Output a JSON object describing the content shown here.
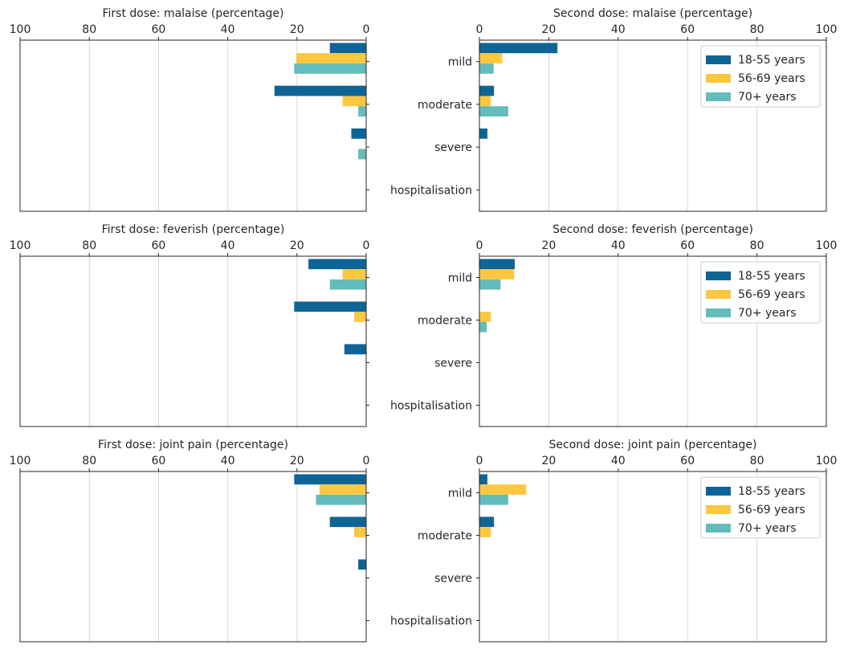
{
  "categories": [
    "mild",
    "moderate",
    "severe",
    "hospitalisation"
  ],
  "legend": [
    "18-55 years",
    "56-69 years",
    "70+ years"
  ],
  "colors": [
    "#0f6496",
    "#fcc841",
    "#64bcbc"
  ],
  "xlim": [
    0,
    100
  ],
  "xticks": [
    0,
    20,
    40,
    60,
    80,
    100
  ],
  "chart_data": [
    {
      "type": "bar",
      "orientation": "horizontal",
      "direction": "reversed",
      "title": "First dose: malaise (percentage)",
      "categories": [
        "mild",
        "moderate",
        "severe",
        "hospitalisation"
      ],
      "xlim": [
        100,
        0
      ],
      "series": [
        {
          "name": "18-55 years",
          "values": [
            10.5,
            26.5,
            4.3,
            0
          ]
        },
        {
          "name": "56-69 years",
          "values": [
            20.2,
            6.8,
            0,
            0
          ]
        },
        {
          "name": "70+ years",
          "values": [
            20.8,
            2.3,
            2.3,
            0
          ]
        }
      ]
    },
    {
      "type": "bar",
      "orientation": "horizontal",
      "title": "Second dose: malaise (percentage)",
      "categories": [
        "mild",
        "moderate",
        "severe",
        "hospitalisation"
      ],
      "xlim": [
        0,
        100
      ],
      "legend_position": "top-right",
      "series": [
        {
          "name": "18-55 years",
          "values": [
            22.5,
            4.2,
            2.3,
            0
          ]
        },
        {
          "name": "56-69 years",
          "values": [
            6.6,
            3.3,
            0,
            0
          ]
        },
        {
          "name": "70+ years",
          "values": [
            4.1,
            8.3,
            0,
            0
          ]
        }
      ]
    },
    {
      "type": "bar",
      "orientation": "horizontal",
      "direction": "reversed",
      "title": "First dose: feverish (percentage)",
      "categories": [
        "mild",
        "moderate",
        "severe",
        "hospitalisation"
      ],
      "xlim": [
        100,
        0
      ],
      "series": [
        {
          "name": "18-55 years",
          "values": [
            16.7,
            20.8,
            6.3,
            0
          ]
        },
        {
          "name": "56-69 years",
          "values": [
            6.8,
            3.5,
            0,
            0
          ]
        },
        {
          "name": "70+ years",
          "values": [
            10.5,
            0,
            0,
            0
          ]
        }
      ]
    },
    {
      "type": "bar",
      "orientation": "horizontal",
      "title": "Second dose: feverish (percentage)",
      "categories": [
        "mild",
        "moderate",
        "severe",
        "hospitalisation"
      ],
      "xlim": [
        0,
        100
      ],
      "legend_position": "top-right",
      "series": [
        {
          "name": "18-55 years",
          "values": [
            10.2,
            0,
            0,
            0
          ]
        },
        {
          "name": "56-69 years",
          "values": [
            10.0,
            3.3,
            0,
            0
          ]
        },
        {
          "name": "70+ years",
          "values": [
            6.1,
            2.1,
            0,
            0
          ]
        }
      ]
    },
    {
      "type": "bar",
      "orientation": "horizontal",
      "direction": "reversed",
      "title": "First dose: joint pain (percentage)",
      "categories": [
        "mild",
        "moderate",
        "severe",
        "hospitalisation"
      ],
      "xlim": [
        100,
        0
      ],
      "series": [
        {
          "name": "18-55 years",
          "values": [
            20.8,
            10.5,
            2.3,
            0
          ]
        },
        {
          "name": "56-69 years",
          "values": [
            13.5,
            3.5,
            0,
            0
          ]
        },
        {
          "name": "70+ years",
          "values": [
            14.5,
            0,
            0,
            0
          ]
        }
      ]
    },
    {
      "type": "bar",
      "orientation": "horizontal",
      "title": "Second dose: joint pain (percentage)",
      "categories": [
        "mild",
        "moderate",
        "severe",
        "hospitalisation"
      ],
      "xlim": [
        0,
        100
      ],
      "legend_position": "top-right",
      "series": [
        {
          "name": "18-55 years",
          "values": [
            2.3,
            4.2,
            0,
            0
          ]
        },
        {
          "name": "56-69 years",
          "values": [
            13.5,
            3.3,
            0,
            0
          ]
        },
        {
          "name": "70+ years",
          "values": [
            8.3,
            0,
            0,
            0
          ]
        }
      ]
    }
  ]
}
